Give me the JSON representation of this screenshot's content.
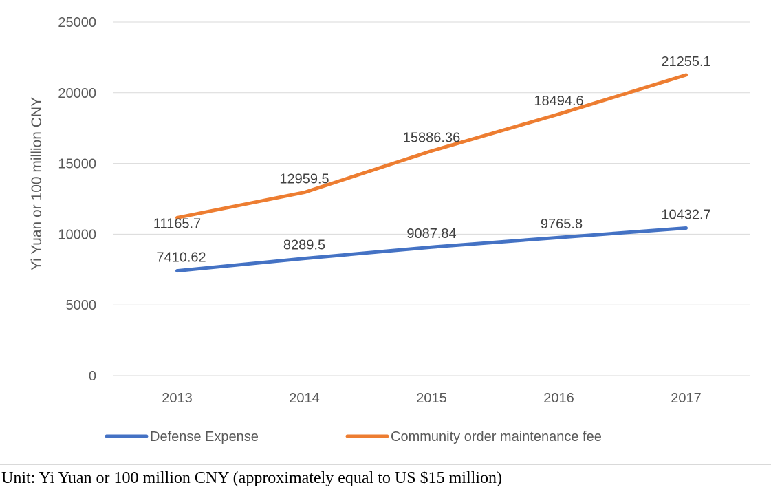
{
  "chart_data": {
    "type": "line",
    "categories": [
      "2013",
      "2014",
      "2015",
      "2016",
      "2017"
    ],
    "series": [
      {
        "name": "Defense Expense",
        "color": "#4472c4",
        "values": [
          7410.62,
          8289.5,
          9087.84,
          9765.8,
          10432.7
        ],
        "labels": [
          "7410.62",
          "8289.5",
          "9087.84",
          "9765.8",
          "10432.7"
        ]
      },
      {
        "name": "Community order maintenance fee",
        "color": "#ed7d31",
        "values": [
          11165.7,
          12959.5,
          15886.36,
          18494.6,
          21255.1
        ],
        "labels": [
          "11165.7",
          "12959.5",
          "15886.36",
          "18494.6",
          "21255.1"
        ]
      }
    ],
    "ylabel": "Yi Yuan or 100 million CNY",
    "ylim": [
      0,
      25000
    ],
    "yticks": [
      0,
      5000,
      10000,
      15000,
      20000,
      25000
    ],
    "ytick_labels": [
      "0",
      "5000",
      "10000",
      "15000",
      "20000",
      "25000"
    ],
    "grid": true,
    "legend_position": "bottom",
    "gridline_color": "#d9d9d9"
  },
  "caption": "Unit: Yi Yuan or 100 million CNY (approximately equal to US $15 million)"
}
